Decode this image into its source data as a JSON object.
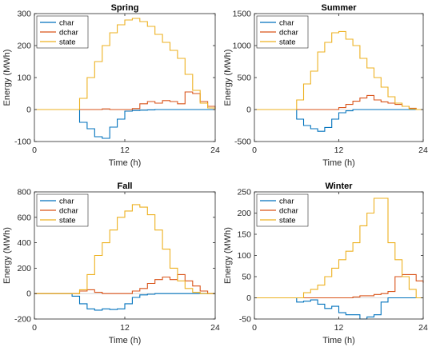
{
  "figure": {
    "colors": {
      "char": "#0072BD",
      "dchar": "#D95319",
      "state": "#EDB120",
      "axis": "#262626",
      "zero": "#D0D0D0"
    }
  },
  "chart_data": [
    {
      "type": "line",
      "step": true,
      "title": "Spring",
      "xlabel": "Time (h)",
      "ylabel": "Energy (MWh)",
      "xlim": [
        0,
        24
      ],
      "ylim": [
        -100,
        300
      ],
      "xticks": [
        0,
        12,
        24
      ],
      "yticks": [
        -100,
        0,
        100,
        200,
        300
      ],
      "legend": "top-left",
      "x": [
        0,
        1,
        2,
        3,
        4,
        5,
        6,
        7,
        8,
        9,
        10,
        11,
        12,
        13,
        14,
        15,
        16,
        17,
        18,
        19,
        20,
        21,
        22,
        23,
        24
      ],
      "series": [
        {
          "name": "char",
          "color": "#0072BD",
          "values": [
            0,
            0,
            0,
            0,
            0,
            0,
            -40,
            -60,
            -85,
            -90,
            -55,
            -30,
            -5,
            -3,
            -2,
            -1,
            0,
            0,
            0,
            0,
            0,
            0,
            0,
            0,
            0
          ]
        },
        {
          "name": "dchar",
          "color": "#D95319",
          "values": [
            0,
            0,
            0,
            0,
            0,
            0,
            0,
            0,
            0,
            2,
            0,
            0,
            0,
            3,
            18,
            25,
            20,
            28,
            25,
            18,
            55,
            50,
            25,
            10,
            0
          ]
        },
        {
          "name": "state",
          "color": "#EDB120",
          "values": [
            0,
            0,
            0,
            0,
            0,
            0,
            35,
            100,
            150,
            200,
            240,
            265,
            280,
            285,
            275,
            260,
            235,
            210,
            185,
            160,
            110,
            60,
            20,
            5,
            0
          ]
        }
      ]
    },
    {
      "type": "line",
      "step": true,
      "title": "Summer",
      "xlabel": "Time (h)",
      "ylabel": "Energy (MWh)",
      "xlim": [
        0,
        24
      ],
      "ylim": [
        -500,
        1500
      ],
      "xticks": [
        0,
        12,
        24
      ],
      "yticks": [
        -500,
        0,
        500,
        1000,
        1500
      ],
      "legend": "top-left",
      "x": [
        0,
        1,
        2,
        3,
        4,
        5,
        6,
        7,
        8,
        9,
        10,
        11,
        12,
        13,
        14,
        15,
        16,
        17,
        18,
        19,
        20,
        21,
        22,
        23,
        24
      ],
      "series": [
        {
          "name": "char",
          "color": "#0072BD",
          "values": [
            0,
            0,
            0,
            0,
            0,
            0,
            -150,
            -250,
            -300,
            -340,
            -280,
            -150,
            -50,
            -20,
            0,
            0,
            0,
            0,
            0,
            0,
            0,
            0,
            0,
            0,
            0
          ]
        },
        {
          "name": "dchar",
          "color": "#D95319",
          "values": [
            0,
            0,
            0,
            0,
            0,
            0,
            0,
            0,
            0,
            0,
            0,
            0,
            30,
            80,
            130,
            180,
            220,
            150,
            120,
            100,
            80,
            50,
            20,
            0,
            0
          ]
        },
        {
          "name": "state",
          "color": "#EDB120",
          "values": [
            0,
            0,
            0,
            0,
            0,
            0,
            150,
            400,
            600,
            900,
            1050,
            1200,
            1220,
            1100,
            1000,
            800,
            650,
            500,
            350,
            200,
            100,
            50,
            10,
            0,
            0
          ]
        }
      ]
    },
    {
      "type": "line",
      "step": true,
      "title": "Fall",
      "xlabel": "Time (h)",
      "ylabel": "Energy (MWh)",
      "xlim": [
        0,
        24
      ],
      "ylim": [
        -200,
        800
      ],
      "xticks": [
        0,
        12,
        24
      ],
      "yticks": [
        -200,
        0,
        200,
        400,
        600,
        800
      ],
      "legend": "top-left",
      "x": [
        0,
        1,
        2,
        3,
        4,
        5,
        6,
        7,
        8,
        9,
        10,
        11,
        12,
        13,
        14,
        15,
        16,
        17,
        18,
        19,
        20,
        21,
        22,
        23,
        24
      ],
      "series": [
        {
          "name": "char",
          "color": "#0072BD",
          "values": [
            0,
            0,
            0,
            0,
            0,
            -20,
            -80,
            -120,
            -130,
            -120,
            -125,
            -120,
            -80,
            -30,
            -10,
            -5,
            0,
            0,
            0,
            0,
            0,
            0,
            0,
            0,
            0
          ]
        },
        {
          "name": "dchar",
          "color": "#D95319",
          "values": [
            0,
            0,
            0,
            0,
            0,
            0,
            20,
            30,
            10,
            0,
            0,
            0,
            0,
            20,
            40,
            80,
            110,
            130,
            110,
            150,
            100,
            60,
            20,
            0,
            0
          ]
        },
        {
          "name": "state",
          "color": "#EDB120",
          "values": [
            0,
            0,
            0,
            0,
            0,
            0,
            30,
            150,
            300,
            400,
            500,
            600,
            650,
            700,
            680,
            620,
            500,
            350,
            200,
            100,
            40,
            10,
            0,
            0,
            0
          ]
        }
      ]
    },
    {
      "type": "line",
      "step": true,
      "title": "Winter",
      "xlabel": "Time (h)",
      "ylabel": "Energy (MWh)",
      "xlim": [
        0,
        24
      ],
      "ylim": [
        -50,
        250
      ],
      "xticks": [
        0,
        12,
        24
      ],
      "yticks": [
        -50,
        0,
        50,
        100,
        150,
        200,
        250
      ],
      "legend": "top-left",
      "x": [
        0,
        1,
        2,
        3,
        4,
        5,
        6,
        7,
        8,
        9,
        10,
        11,
        12,
        13,
        14,
        15,
        16,
        17,
        18,
        19,
        20,
        21,
        22,
        23,
        24
      ],
      "series": [
        {
          "name": "char",
          "color": "#0072BD",
          "values": [
            0,
            0,
            0,
            0,
            0,
            0,
            -10,
            -8,
            -5,
            -15,
            -25,
            -20,
            -35,
            -40,
            -40,
            -50,
            -45,
            -40,
            -10,
            0,
            0,
            0,
            0,
            0,
            0
          ]
        },
        {
          "name": "dchar",
          "color": "#D95319",
          "values": [
            0,
            0,
            0,
            0,
            0,
            0,
            0,
            0,
            0,
            0,
            0,
            0,
            0,
            0,
            2,
            5,
            5,
            8,
            10,
            15,
            50,
            55,
            55,
            40,
            35
          ]
        },
        {
          "name": "state",
          "color": "#EDB120",
          "values": [
            0,
            0,
            0,
            0,
            0,
            0,
            0,
            12,
            20,
            30,
            50,
            70,
            90,
            110,
            130,
            170,
            200,
            235,
            235,
            130,
            90,
            50,
            20,
            0,
            0
          ]
        }
      ]
    }
  ]
}
